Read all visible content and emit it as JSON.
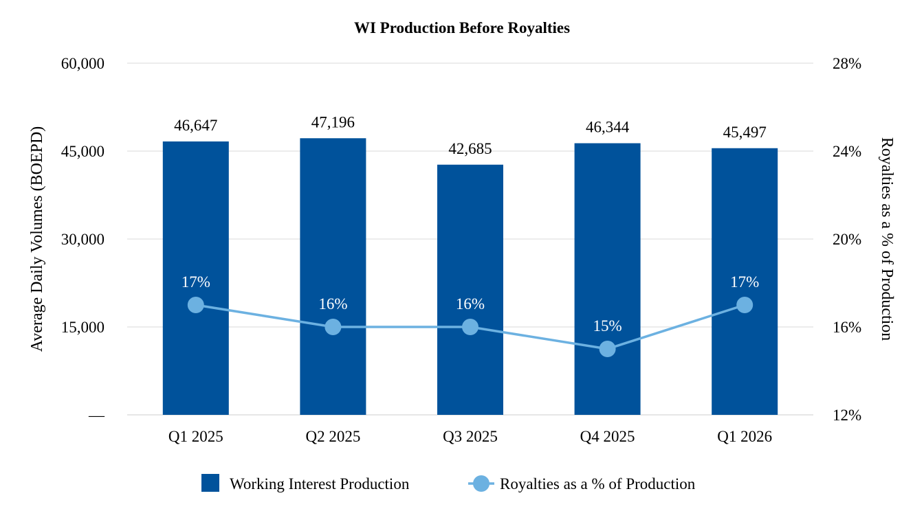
{
  "chart_data": {
    "type": "bar",
    "title": "WI Production Before Royalties",
    "categories": [
      "Q1 2025",
      "Q2 2025",
      "Q3 2025",
      "Q4 2025",
      "Q1 2026"
    ],
    "series": [
      {
        "name": "Working Interest Production",
        "type": "bar",
        "axis": "left",
        "values": [
          46647,
          47196,
          42685,
          46344,
          45497
        ],
        "labels": [
          "46,647",
          "47,196",
          "42,685",
          "46,344",
          "45,497"
        ],
        "color": "#00529b"
      },
      {
        "name": "Royalties as a % of Production",
        "type": "line",
        "axis": "right",
        "values": [
          17,
          16,
          16,
          15,
          17
        ],
        "labels": [
          "17%",
          "16%",
          "16%",
          "15%",
          "17%"
        ],
        "color": "#6cb1e1",
        "label_color": "#ffffff"
      }
    ],
    "y_left": {
      "label": "Average Daily Volumes (BOEPD)",
      "ylim": [
        0,
        60000
      ],
      "ticks": [
        0,
        15000,
        30000,
        45000,
        60000
      ],
      "tick_labels": [
        "—",
        "15,000",
        "30,000",
        "45,000",
        "60,000"
      ]
    },
    "y_right": {
      "label": "Royalties as a % of Production",
      "ylim": [
        12,
        28
      ],
      "ticks": [
        12,
        16,
        20,
        24,
        28
      ],
      "tick_labels": [
        "12%",
        "16%",
        "20%",
        "24%",
        "28%"
      ]
    },
    "grid": true,
    "gridline_color": "#e6e6e6",
    "legend_position": "bottom"
  }
}
